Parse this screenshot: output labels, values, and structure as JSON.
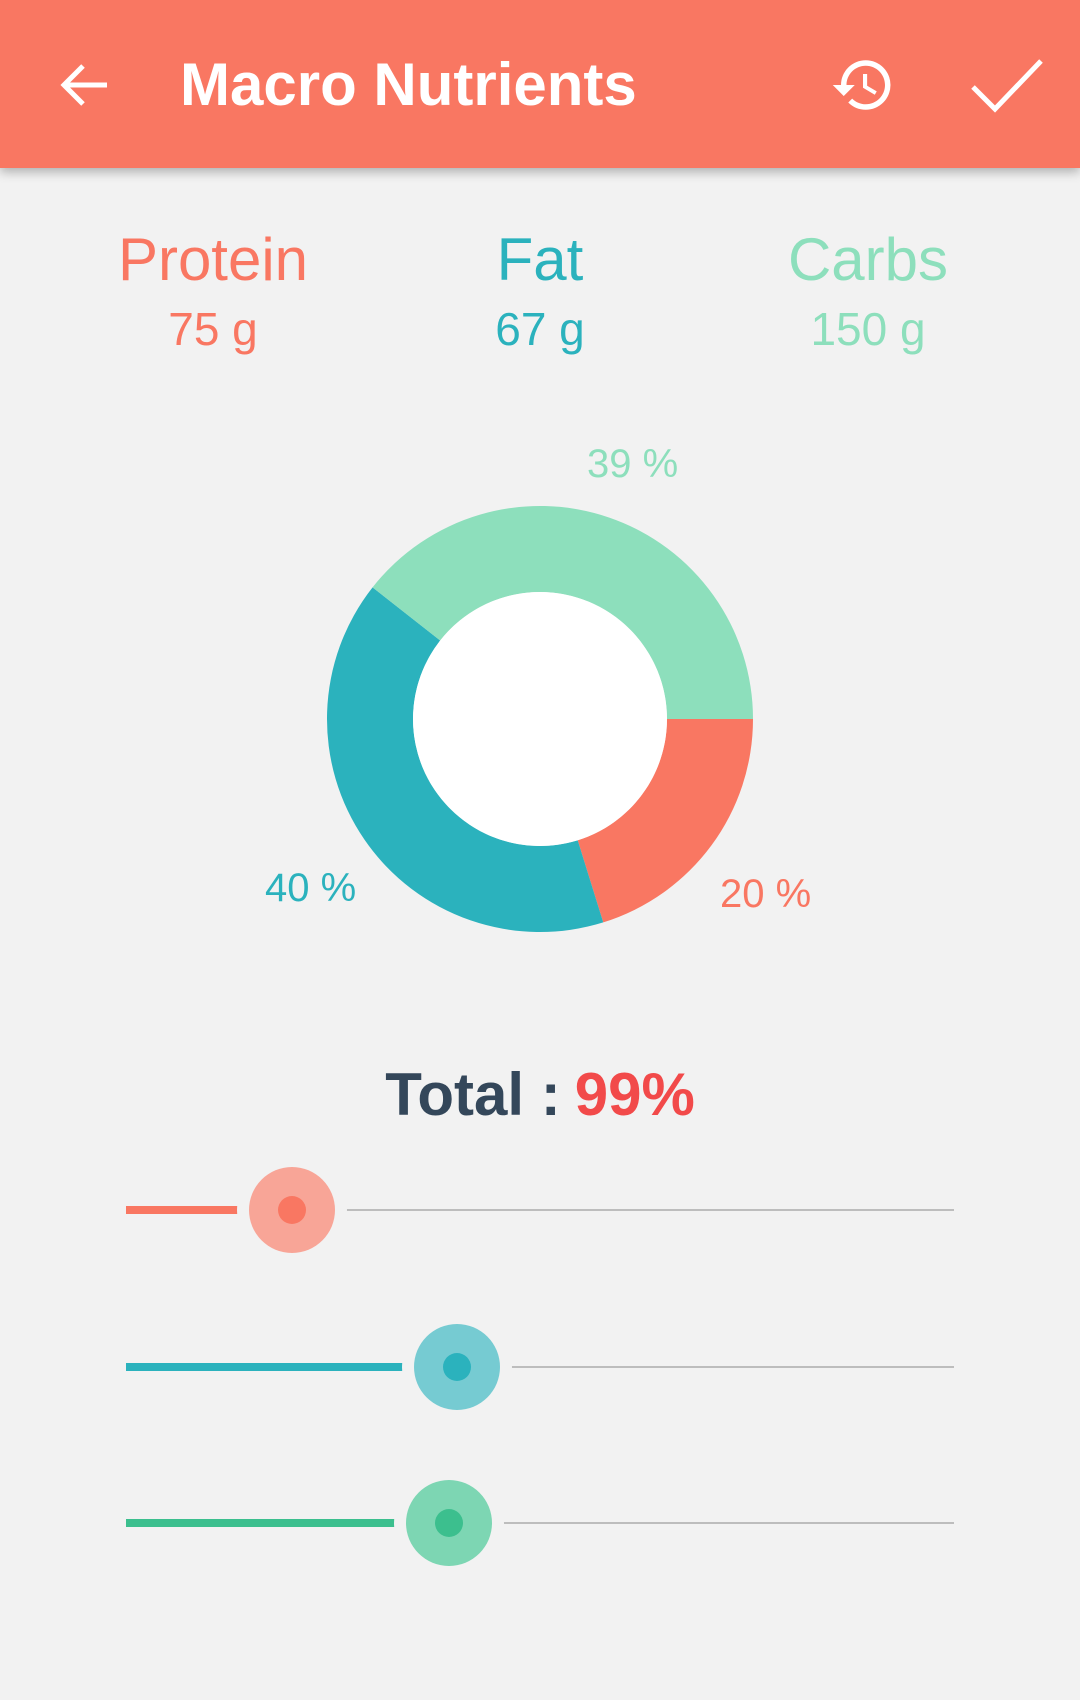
{
  "appbar": {
    "title": "Macro Nutrients",
    "back_icon": "arrow-back-icon",
    "history_icon": "history-icon",
    "check_icon": "check-icon",
    "color": "#f97762"
  },
  "macros": {
    "protein": {
      "name": "Protein",
      "amount": "75 g",
      "percent_label": "20 %",
      "percent": 20,
      "color": "#f97762"
    },
    "fat": {
      "name": "Fat",
      "amount": "67 g",
      "percent_label": "40 %",
      "percent": 40,
      "color": "#2bb2bd"
    },
    "carbs": {
      "name": "Carbs",
      "amount": "150 g",
      "percent_label": "39 %",
      "percent": 39,
      "color": "#8ddfbc"
    }
  },
  "chart_data": {
    "type": "pie",
    "variant": "donut",
    "categories": [
      "Protein",
      "Fat",
      "Carbs"
    ],
    "values": [
      20,
      40,
      39
    ],
    "labels": [
      "20 %",
      "40 %",
      "39 %"
    ],
    "colors": [
      "#f97762",
      "#2bb2bd",
      "#8ddfbc"
    ],
    "title": ""
  },
  "total": {
    "label": "Total :",
    "value": "99%"
  },
  "sliders": {
    "protein": {
      "value_fraction": 0.2,
      "fill_color": "#f97762",
      "thumb_color": "#f8a597",
      "dot_color": "#f97762"
    },
    "fat": {
      "value_fraction": 0.4,
      "fill_color": "#2bb2bd",
      "thumb_color": "#76cbd2",
      "dot_color": "#2bb2bd"
    },
    "carbs": {
      "value_fraction": 0.39,
      "fill_color": "#3cbf8e",
      "thumb_color": "#7dd6b3",
      "dot_color": "#3cbf8e"
    }
  }
}
